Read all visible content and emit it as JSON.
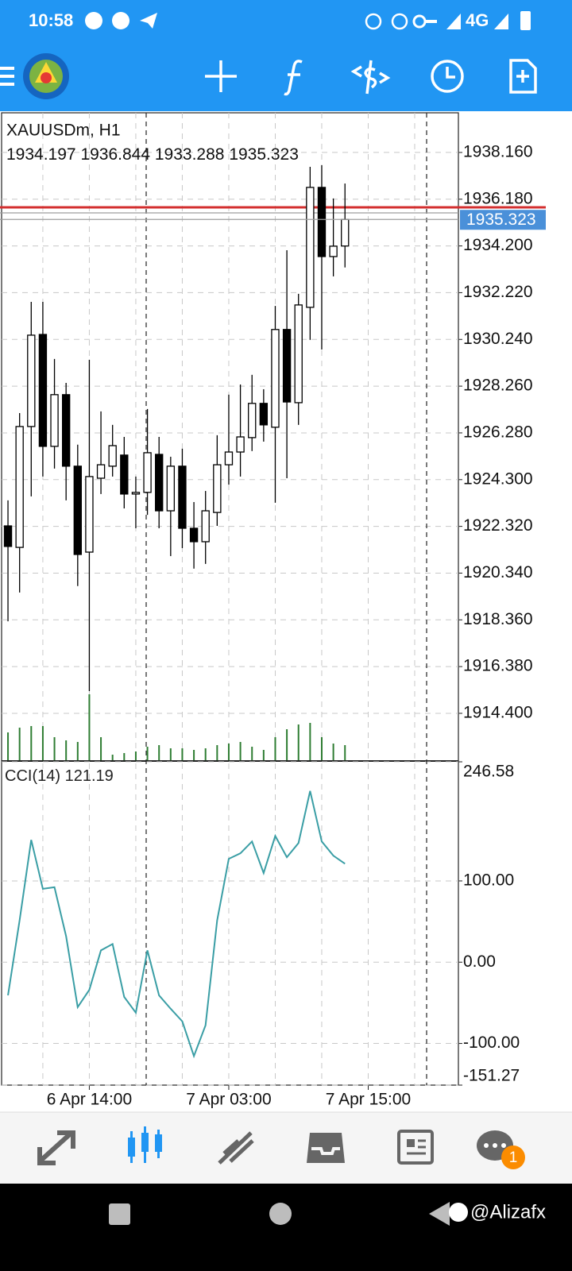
{
  "status_bar": {
    "time": "10:58",
    "network": "4G"
  },
  "chart_data": [
    {
      "type": "candlestick",
      "title": "XAUUSDm, H1",
      "open": [
        1922.34,
        1921.43,
        1926.55,
        1930.45,
        1925.71,
        1927.9,
        1924.87,
        1921.23,
        1924.36,
        1924.87,
        1925.34,
        1923.69,
        1923.76,
        1925.37,
        1922.98,
        1924.87,
        1922.24,
        1921.67,
        1922.91,
        1924.93,
        1925.47,
        1926.08,
        1927.53,
        1926.52,
        1930.66,
        1927.56,
        1931.6,
        1936.68,
        1933.75,
        1934.197
      ],
      "high": [
        1923.42,
        1927.12,
        1931.83,
        1931.83,
        1929.41,
        1928.4,
        1925.78,
        1929.38,
        1927.19,
        1926.62,
        1926.11,
        1924.43,
        1927.29,
        1926.11,
        1925.27,
        1925.61,
        1923.35,
        1923.82,
        1926.18,
        1927.9,
        1928.33,
        1928.74,
        1928.13,
        1931.66,
        1934.02,
        1932.17,
        1937.55,
        1937.62,
        1936.21,
        1936.844
      ],
      "low": [
        1918.3,
        1919.52,
        1923.59,
        1924.43,
        1924.77,
        1923.42,
        1919.79,
        1915.34,
        1923.69,
        1924.43,
        1923.08,
        1922.24,
        1922.81,
        1922.24,
        1921.06,
        1921.4,
        1920.53,
        1920.73,
        1922.34,
        1924.09,
        1924.43,
        1925.51,
        1925.91,
        1923.32,
        1924.36,
        1926.62,
        1930.22,
        1929.81,
        1932.91,
        1933.288
      ],
      "close": [
        1921.47,
        1926.55,
        1930.42,
        1925.71,
        1927.9,
        1924.87,
        1921.13,
        1924.43,
        1924.93,
        1925.74,
        1923.69,
        1923.76,
        1925.44,
        1922.98,
        1924.87,
        1922.24,
        1921.67,
        1922.98,
        1924.93,
        1925.47,
        1926.11,
        1927.53,
        1926.62,
        1930.66,
        1927.59,
        1931.7,
        1936.68,
        1933.75,
        1934.19,
        1935.323
      ],
      "volume": [
        36,
        42,
        44,
        44,
        30,
        26,
        24,
        84,
        30,
        8,
        10,
        12,
        18,
        20,
        16,
        16,
        14,
        16,
        20,
        22,
        24,
        18,
        14,
        30,
        40,
        46,
        48,
        30,
        22,
        20
      ],
      "volume_lim": [
        0,
        816
      ],
      "bull_color": "#ffffff",
      "bear_color": "#000000",
      "volume_color": "#2e7d32",
      "ylim": [
        1912.38,
        1939.84
      ],
      "yticks": [
        {
          "value": 1938.16,
          "label": "1938.160"
        },
        {
          "value": 1936.18,
          "label": "1936.180"
        },
        {
          "value": 1934.2,
          "label": "1934.200"
        },
        {
          "value": 1932.22,
          "label": "1932.220"
        },
        {
          "value": 1930.24,
          "label": "1930.240"
        },
        {
          "value": 1928.26,
          "label": "1928.260"
        },
        {
          "value": 1926.28,
          "label": "1926.280"
        },
        {
          "value": 1924.3,
          "label": "1924.300"
        },
        {
          "value": 1922.32,
          "label": "1922.320"
        },
        {
          "value": 1920.34,
          "label": "1920.340"
        },
        {
          "value": 1918.36,
          "label": "1918.360"
        },
        {
          "value": 1916.38,
          "label": "1916.380"
        },
        {
          "value": 1914.4,
          "label": "1914.400"
        }
      ],
      "xlim": [
        -0.55,
        38.76
      ],
      "xticks": [
        {
          "value": 7,
          "label": "6 Apr 14:00"
        },
        {
          "value": 19,
          "label": "7 Apr 03:00"
        },
        {
          "value": 31,
          "label": "7 Apr 15:00"
        }
      ],
      "grid": true
    },
    {
      "type": "line",
      "title": "CCI(14)",
      "color": "#3a9ea5",
      "values": [
        -40.78,
        51.46,
        150.49,
        90.29,
        92.23,
        32.04,
        -55.34,
        -33.98,
        14.56,
        22.33,
        -42.72,
        -62.14,
        14.56,
        -40.78,
        -57.28,
        -72.82,
        -115.53,
        -77.67,
        51.46,
        127.18,
        133.98,
        148.54,
        109.71,
        155.34,
        129.13,
        146.6,
        210.68,
        148.54,
        131.07,
        121.19
      ],
      "ylim": [
        -151.27,
        246.58
      ],
      "yticks": [
        246.58,
        {
          "value": 100,
          "label": "100.00"
        },
        {
          "value": 0,
          "label": "0.00"
        },
        {
          "value": -100,
          "label": "-100.00"
        },
        -151.27
      ],
      "grid": true
    }
  ],
  "notification_count": 1,
  "watermark": "@Alizafx"
}
